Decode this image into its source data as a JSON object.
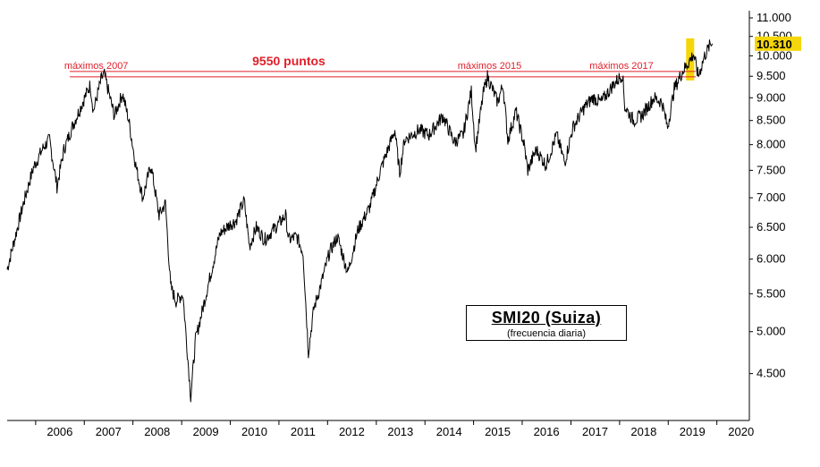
{
  "chart_data": {
    "type": "line",
    "title": "SMI20 (Suiza)",
    "subtitle": "(frecuencia diaria)",
    "xlabel": "",
    "ylabel": "",
    "y_scale": "log",
    "ylim": [
      4000,
      11200
    ],
    "xlim": [
      "2005-06-01",
      "2020-09-01"
    ],
    "x_ticks": [
      "2006",
      "2007",
      "2008",
      "2009",
      "2010",
      "2011",
      "2012",
      "2013",
      "2014",
      "2015",
      "2016",
      "2017",
      "2018",
      "2019",
      "2020"
    ],
    "y_ticks": [
      {
        "value": 4500,
        "label": "4.500"
      },
      {
        "value": 5000,
        "label": "5.000"
      },
      {
        "value": 5500,
        "label": "5.500"
      },
      {
        "value": 6000,
        "label": "6.000"
      },
      {
        "value": 6500,
        "label": "6.500"
      },
      {
        "value": 7000,
        "label": "7.000"
      },
      {
        "value": 7500,
        "label": "7.500"
      },
      {
        "value": 8000,
        "label": "8.000"
      },
      {
        "value": 8500,
        "label": "8.500"
      },
      {
        "value": 9000,
        "label": "9.000"
      },
      {
        "value": 9500,
        "label": "9.500"
      },
      {
        "value": 10000,
        "label": "10.000"
      },
      {
        "value": 10500,
        "label": "10.500"
      },
      {
        "value": 11000,
        "label": "11.000"
      }
    ],
    "last_value": {
      "value": 10310,
      "label": "10.310"
    },
    "series": [
      {
        "color": "#000000",
        "points": [
          [
            "2005-06-01",
            5850
          ],
          [
            "2005-08-01",
            6350
          ],
          [
            "2005-10-01",
            6900
          ],
          [
            "2005-12-15",
            7550
          ],
          [
            "2006-03-01",
            7950
          ],
          [
            "2006-04-15",
            8100
          ],
          [
            "2006-06-10",
            7200
          ],
          [
            "2006-08-01",
            7900
          ],
          [
            "2006-10-01",
            8350
          ],
          [
            "2006-12-20",
            8900
          ],
          [
            "2007-02-15",
            9300
          ],
          [
            "2007-03-10",
            8700
          ],
          [
            "2007-05-10",
            9450
          ],
          [
            "2007-06-01",
            9540
          ],
          [
            "2007-08-15",
            8600
          ],
          [
            "2007-10-15",
            9100
          ],
          [
            "2007-12-01",
            8500
          ],
          [
            "2008-01-22",
            7600
          ],
          [
            "2008-03-15",
            7000
          ],
          [
            "2008-05-15",
            7600
          ],
          [
            "2008-07-15",
            6700
          ],
          [
            "2008-09-01",
            6900
          ],
          [
            "2008-10-10",
            5600
          ],
          [
            "2008-11-20",
            5400
          ],
          [
            "2009-01-10",
            5500
          ],
          [
            "2009-03-10",
            4250
          ],
          [
            "2009-04-15",
            4900
          ],
          [
            "2009-06-15",
            5350
          ],
          [
            "2009-08-15",
            5850
          ],
          [
            "2009-10-15",
            6400
          ],
          [
            "2009-12-31",
            6550
          ],
          [
            "2010-02-10",
            6600
          ],
          [
            "2010-04-15",
            6950
          ],
          [
            "2010-05-25",
            6200
          ],
          [
            "2010-07-15",
            6500
          ],
          [
            "2010-09-15",
            6300
          ],
          [
            "2010-11-15",
            6450
          ],
          [
            "2011-01-15",
            6600
          ],
          [
            "2011-02-20",
            6700
          ],
          [
            "2011-03-15",
            6300
          ],
          [
            "2011-05-15",
            6350
          ],
          [
            "2011-07-01",
            6100
          ],
          [
            "2011-08-10",
            4750
          ],
          [
            "2011-09-20",
            5300
          ],
          [
            "2011-11-15",
            5650
          ],
          [
            "2012-01-15",
            6100
          ],
          [
            "2012-03-15",
            6350
          ],
          [
            "2012-06-01",
            5800
          ],
          [
            "2012-08-15",
            6450
          ],
          [
            "2012-11-15",
            6850
          ],
          [
            "2013-02-01",
            7500
          ],
          [
            "2013-05-20",
            8300
          ],
          [
            "2013-06-25",
            7450
          ],
          [
            "2013-08-01",
            8100
          ],
          [
            "2013-11-15",
            8300
          ],
          [
            "2014-02-01",
            8200
          ],
          [
            "2014-05-15",
            8600
          ],
          [
            "2014-08-10",
            8050
          ],
          [
            "2014-10-15",
            8200
          ],
          [
            "2014-12-15",
            9150
          ],
          [
            "2015-01-15",
            7900
          ],
          [
            "2015-03-15",
            9100
          ],
          [
            "2015-04-15",
            9500
          ],
          [
            "2015-06-30",
            8900
          ],
          [
            "2015-08-10",
            9300
          ],
          [
            "2015-09-15",
            8100
          ],
          [
            "2015-11-15",
            8700
          ],
          [
            "2016-01-15",
            8000
          ],
          [
            "2016-02-12",
            7500
          ],
          [
            "2016-04-15",
            7900
          ],
          [
            "2016-06-27",
            7600
          ],
          [
            "2016-09-15",
            8200
          ],
          [
            "2016-11-15",
            7650
          ],
          [
            "2017-01-15",
            8350
          ],
          [
            "2017-04-15",
            8800
          ],
          [
            "2017-06-15",
            9000
          ],
          [
            "2017-08-15",
            8900
          ],
          [
            "2017-11-15",
            9300
          ],
          [
            "2018-01-23",
            9550
          ],
          [
            "2018-02-09",
            8800
          ],
          [
            "2018-04-15",
            8500
          ],
          [
            "2018-06-15",
            8600
          ],
          [
            "2018-09-15",
            9000
          ],
          [
            "2018-11-15",
            8900
          ],
          [
            "2018-12-27",
            8350
          ],
          [
            "2019-02-15",
            9200
          ],
          [
            "2019-04-15",
            9600
          ],
          [
            "2019-06-15",
            9900
          ],
          [
            "2019-07-10",
            10050
          ],
          [
            "2019-08-15",
            9500
          ],
          [
            "2019-10-01",
            10000
          ],
          [
            "2019-11-15",
            10300
          ],
          [
            "2019-11-29",
            10310
          ]
        ]
      }
    ],
    "reference_lines": [
      {
        "value": 9550,
        "color": "#e0202a",
        "label": "9550 puntos"
      }
    ],
    "annotations": [
      {
        "text": "máximos 2007",
        "x": "2007-04-01",
        "color": "#e0202a"
      },
      {
        "text": "máximos 2015",
        "x": "2015-05-01",
        "color": "#e0202a"
      },
      {
        "text": "máximos 2017",
        "x": "2018-01-15",
        "color": "#e0202a"
      }
    ],
    "highlight": {
      "from": "2019-05-15",
      "to": "2019-07-15",
      "color": "#f5d60a"
    },
    "grid": false,
    "legend": "none"
  }
}
